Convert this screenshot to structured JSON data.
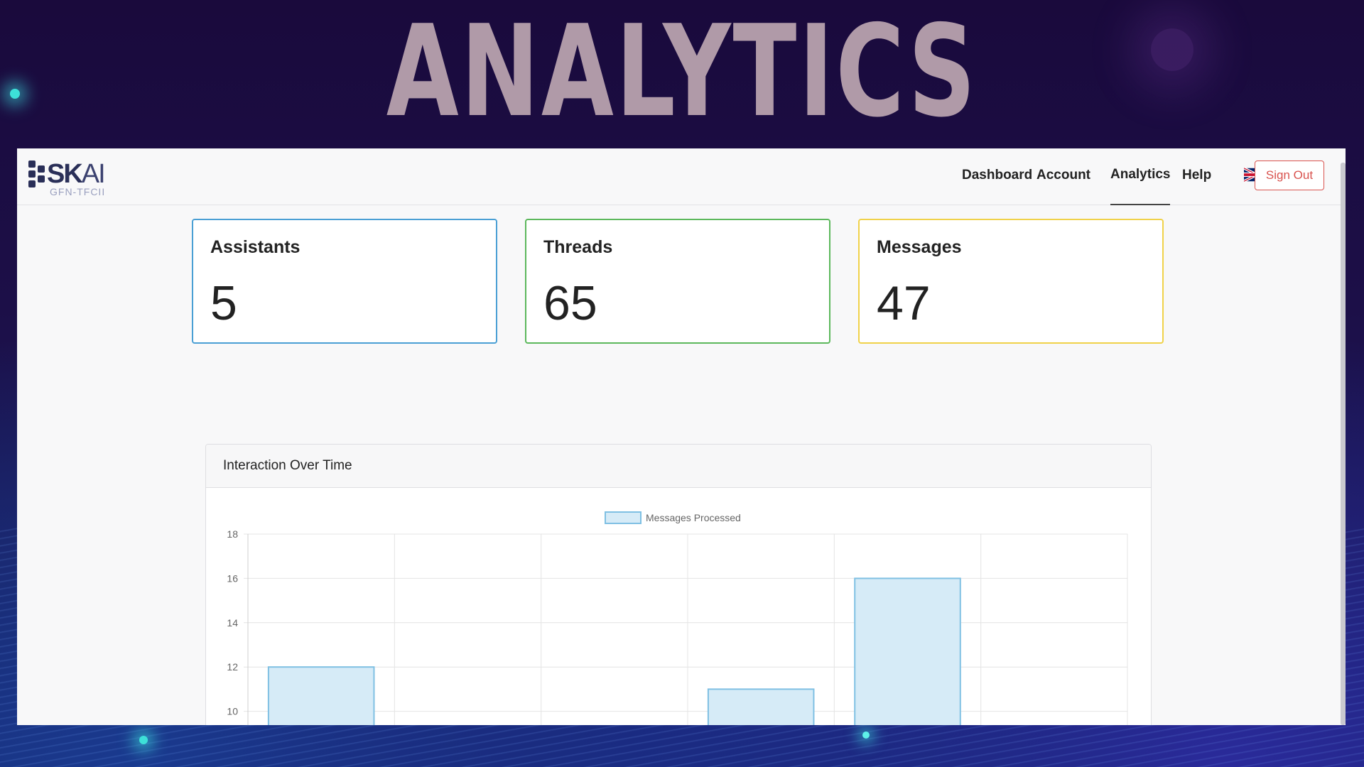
{
  "headline": "ANALYTICS",
  "logo": {
    "brand_bold": "SK",
    "brand_light": "AI",
    "tagline": "GFN-TFCII"
  },
  "nav": {
    "items": [
      {
        "label": "Dashboard",
        "active": false
      },
      {
        "label": "Account",
        "active": false
      },
      {
        "label": "Analytics",
        "active": true
      },
      {
        "label": "Help",
        "active": false
      }
    ],
    "language_icon": "uk-flag-icon",
    "sign_out_label": "Sign Out"
  },
  "stats": [
    {
      "title": "Assistants",
      "value": "5",
      "border_color": "#4a9fd4"
    },
    {
      "title": "Threads",
      "value": "65",
      "border_color": "#5cb85c"
    },
    {
      "title": "Messages",
      "value": "47",
      "border_color": "#f0d24a"
    }
  ],
  "chart": {
    "title": "Interaction Over Time"
  },
  "chart_data": {
    "type": "bar",
    "categories": [
      "",
      "",
      "",
      "",
      "",
      ""
    ],
    "series": [
      {
        "name": "Messages Processed",
        "values": [
          12,
          null,
          null,
          11,
          16,
          null
        ],
        "color": "#d6ebf7",
        "border": "#7fc0e3"
      }
    ],
    "yticks": [
      10,
      12,
      14,
      16,
      18
    ],
    "ylim": [
      10,
      18
    ],
    "grid": true,
    "legend": "top-center"
  }
}
